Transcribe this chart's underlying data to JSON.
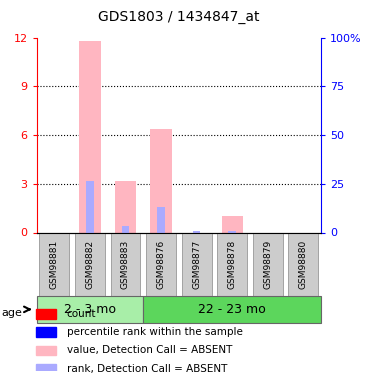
{
  "title": "GDS1803 / 1434847_at",
  "samples": [
    "GSM98881",
    "GSM98882",
    "GSM98883",
    "GSM98876",
    "GSM98877",
    "GSM98878",
    "GSM98879",
    "GSM98880"
  ],
  "absent_values": [
    0,
    11.8,
    3.2,
    6.4,
    0,
    1.0,
    0,
    0
  ],
  "absent_ranks": [
    0,
    3.2,
    0.4,
    1.6,
    0.1,
    0.1,
    0,
    0
  ],
  "groups": [
    {
      "label": "2 - 3 mo",
      "start": 0,
      "end": 3,
      "color": "#90EE90"
    },
    {
      "label": "22 - 23 mo",
      "start": 3,
      "end": 8,
      "color": "#32CD32"
    }
  ],
  "ylim_left": [
    0,
    12
  ],
  "ylim_right": [
    0,
    100
  ],
  "yticks_left": [
    0,
    3,
    6,
    9,
    12
  ],
  "yticks_right": [
    0,
    25,
    50,
    75,
    100
  ],
  "ytick_labels_left": [
    "0",
    "3",
    "6",
    "9",
    "12"
  ],
  "ytick_labels_right": [
    "0",
    "25",
    "50",
    "75",
    "100%"
  ],
  "bar_color_absent": "#FFB6C1",
  "rank_color_absent": "#AAAAFF",
  "bar_width": 0.6,
  "background_color": "#ffffff",
  "grid_color": "#000000",
  "xlabel_color": "black",
  "left_axis_color": "red",
  "right_axis_color": "blue",
  "legend_items": [
    {
      "label": "count",
      "color": "#FF0000",
      "marker": "s"
    },
    {
      "label": "percentile rank within the sample",
      "color": "#0000FF",
      "marker": "s"
    },
    {
      "label": "value, Detection Call = ABSENT",
      "color": "#FFB6C1",
      "marker": "s"
    },
    {
      "label": "rank, Detection Call = ABSENT",
      "color": "#AAAAFF",
      "marker": "s"
    }
  ],
  "age_label": "age",
  "group_label_fontsize": 9,
  "sample_label_fontsize": 7
}
